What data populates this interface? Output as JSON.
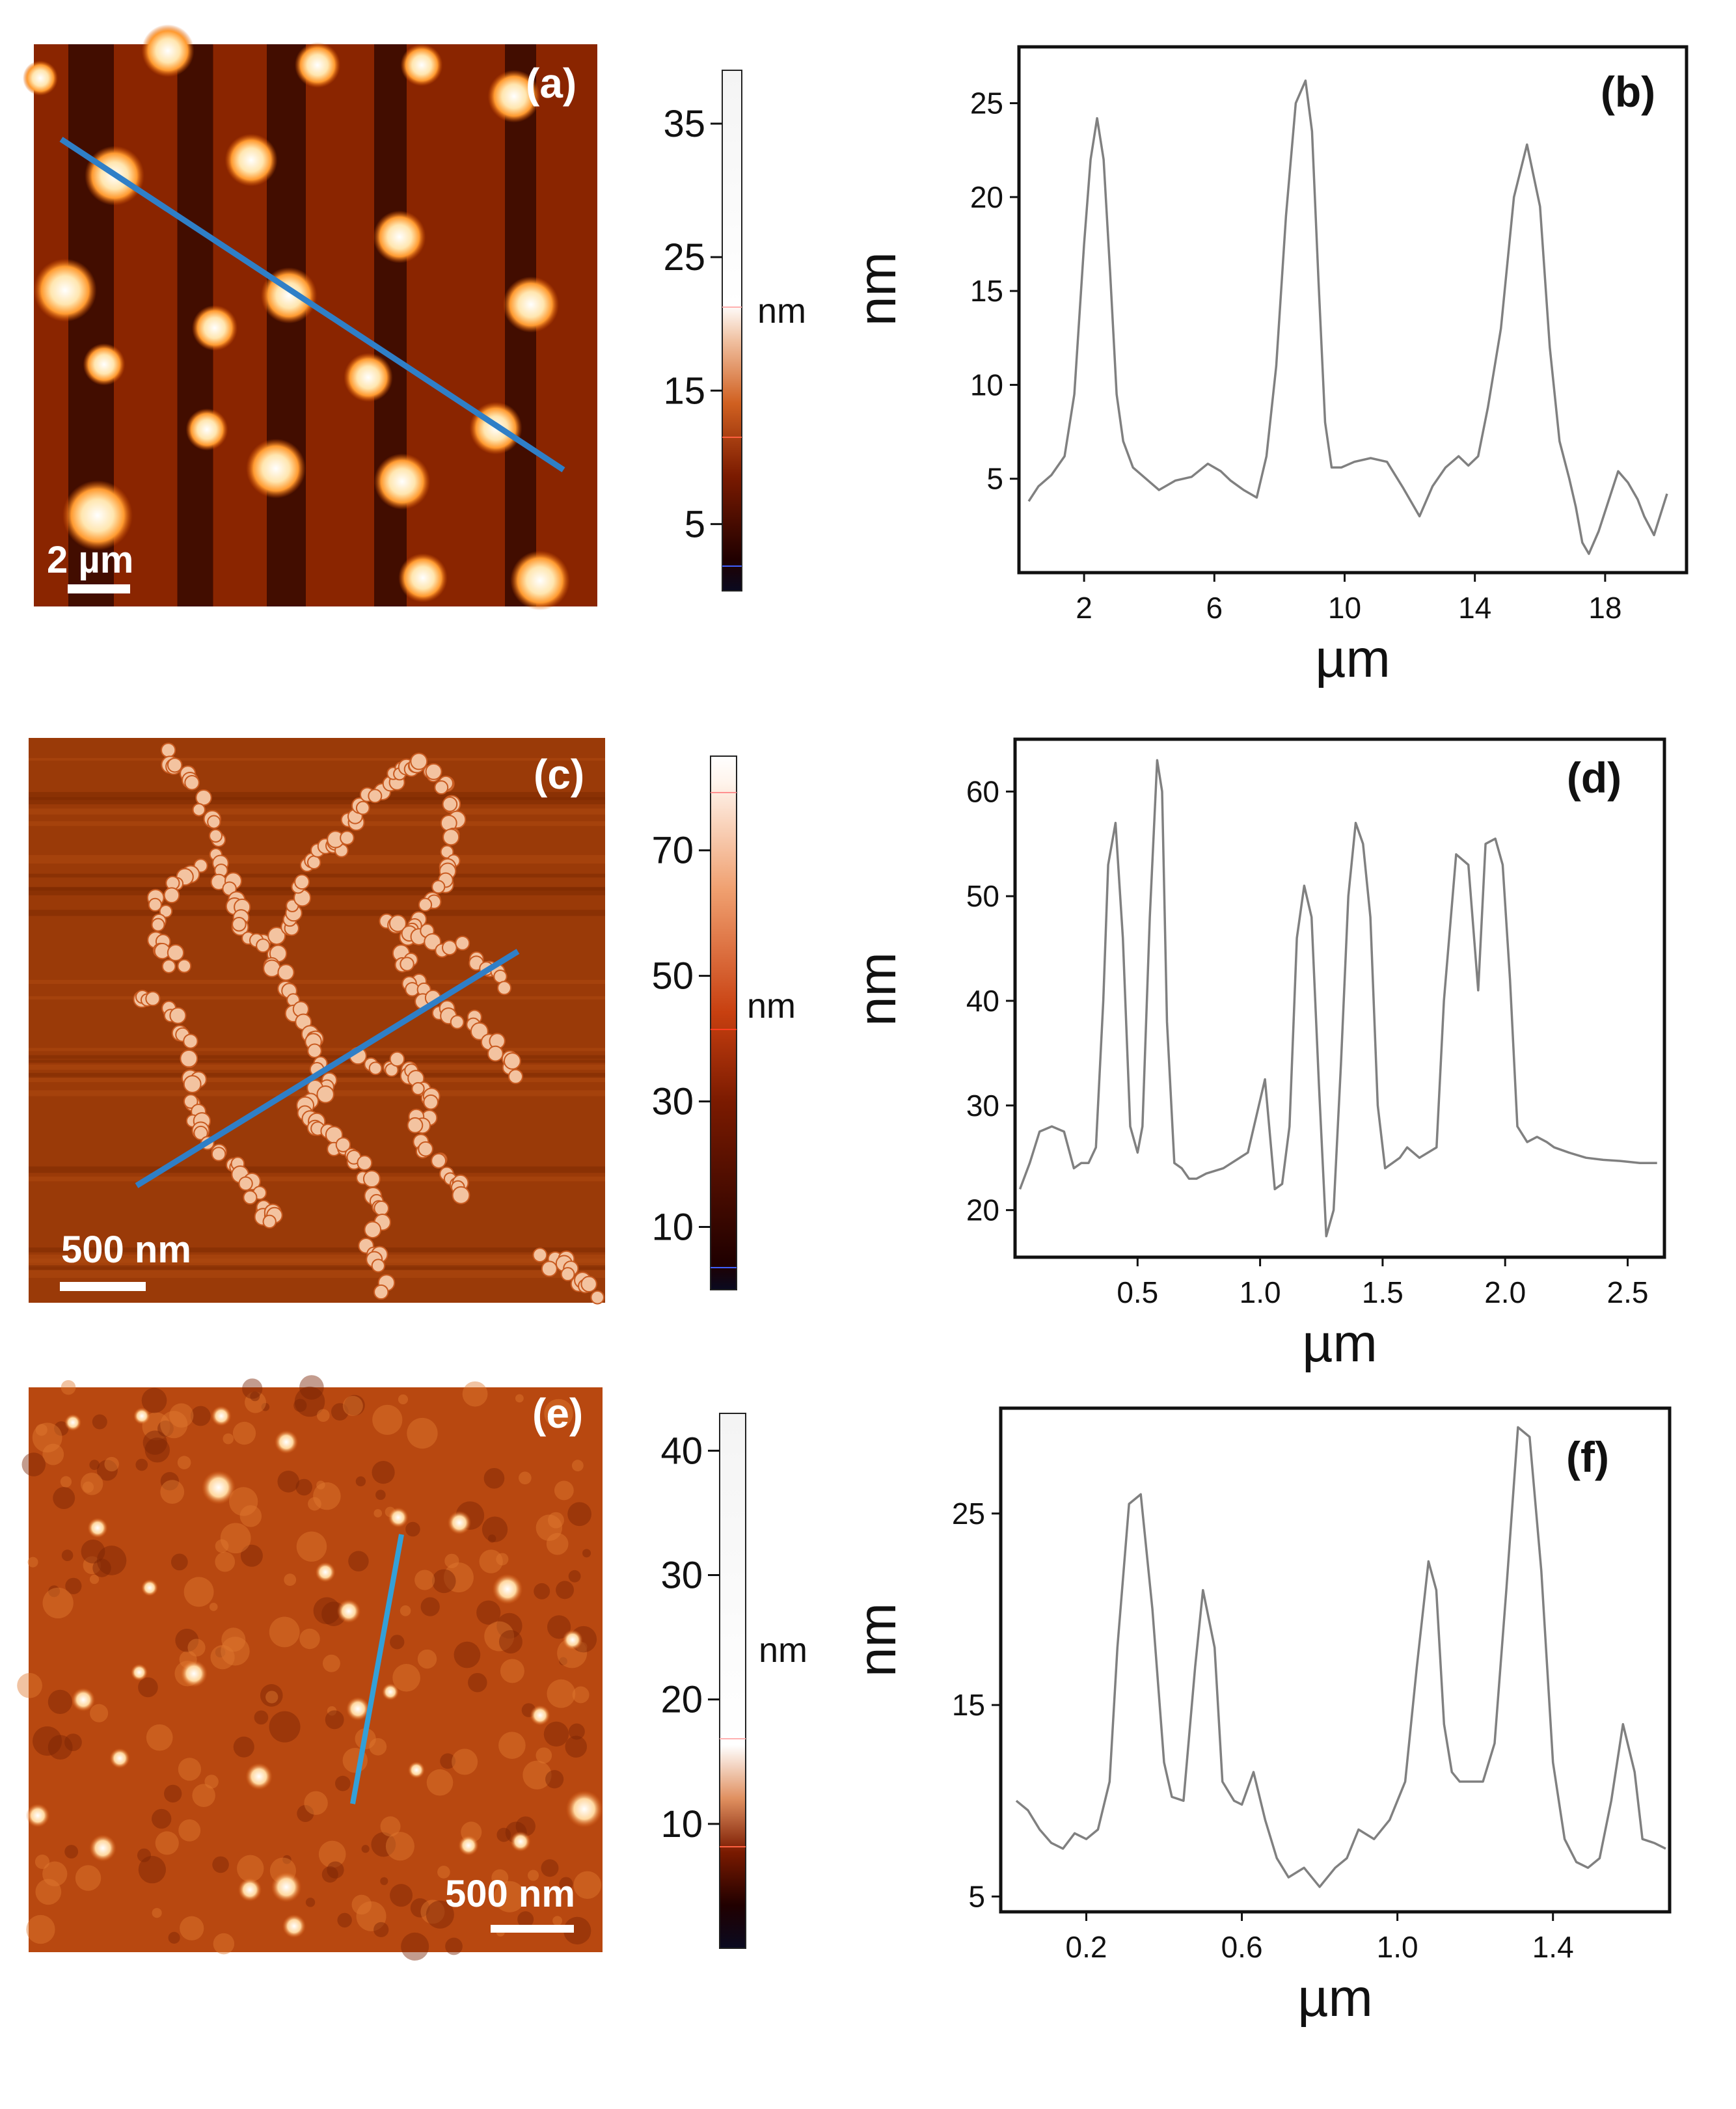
{
  "colors": {
    "afm_dark": "#1a0000",
    "afm_mid": "#a33000",
    "afm_bright": "#ffffff",
    "profile_line": "#2f7fc7",
    "profile_line_e": "#33a0d8",
    "trace": "#808080",
    "frame": "#111111"
  },
  "panels": [
    {
      "id": "a",
      "label": "(a)",
      "scale_bar_label": "2 µm",
      "kind": "dots",
      "colorbar": {
        "unit": "nm",
        "ticks": [
          "35",
          "25",
          "15",
          "5"
        ],
        "tick_values": [
          35,
          25,
          15,
          5
        ],
        "range": [
          0,
          39
        ]
      }
    },
    {
      "id": "c",
      "label": "(c)",
      "scale_bar_label": "500 nm",
      "kind": "network",
      "colorbar": {
        "unit": "nm",
        "ticks": [
          "70",
          "50",
          "30",
          "10"
        ],
        "tick_values": [
          70,
          50,
          30,
          10
        ],
        "range": [
          0,
          85
        ]
      }
    },
    {
      "id": "e",
      "label": "(e)",
      "scale_bar_label": "500 nm",
      "kind": "speckle",
      "colorbar": {
        "unit": "nm",
        "ticks": [
          "40",
          "30",
          "20",
          "10"
        ],
        "tick_values": [
          40,
          30,
          20,
          10
        ],
        "range": [
          0,
          43
        ]
      }
    }
  ],
  "chart_data": [
    {
      "id": "b",
      "type": "line",
      "panel_label": "(b)",
      "xlabel": "µm",
      "ylabel": "nm",
      "xlim": [
        0,
        20.5
      ],
      "ylim": [
        0,
        28
      ],
      "x_ticks": [
        2,
        6,
        10,
        14,
        18
      ],
      "x_tick_labels": [
        "2",
        "6",
        "10",
        "14",
        "18"
      ],
      "y_ticks": [
        5,
        10,
        15,
        20,
        25
      ],
      "y_tick_labels": [
        "5",
        "10",
        "15",
        "20",
        "25"
      ],
      "x": [
        0.3,
        0.6,
        1.0,
        1.4,
        1.7,
        2.0,
        2.2,
        2.4,
        2.6,
        2.8,
        3.0,
        3.2,
        3.5,
        3.9,
        4.3,
        4.8,
        5.3,
        5.8,
        6.2,
        6.5,
        6.9,
        7.3,
        7.6,
        7.9,
        8.2,
        8.5,
        8.8,
        9.0,
        9.2,
        9.4,
        9.6,
        9.9,
        10.3,
        10.8,
        11.3,
        11.8,
        12.3,
        12.7,
        13.1,
        13.5,
        13.8,
        14.1,
        14.4,
        14.8,
        15.2,
        15.6,
        16.0,
        16.3,
        16.6,
        16.9,
        17.1,
        17.3,
        17.5,
        17.8,
        18.1,
        18.4,
        18.7,
        19.0,
        19.2,
        19.5,
        19.9
      ],
      "values": [
        3.8,
        4.6,
        5.2,
        6.2,
        9.5,
        17.5,
        22.0,
        24.2,
        22.0,
        16.0,
        9.5,
        7.0,
        5.6,
        5.0,
        4.4,
        4.9,
        5.1,
        5.8,
        5.4,
        4.9,
        4.4,
        4.0,
        6.2,
        11.0,
        19.0,
        25.0,
        26.2,
        23.5,
        15.5,
        8.0,
        5.6,
        5.6,
        5.9,
        6.1,
        5.9,
        4.5,
        3.0,
        4.6,
        5.6,
        6.2,
        5.7,
        6.2,
        8.8,
        13.0,
        20.0,
        22.8,
        19.5,
        12.0,
        7.0,
        5.0,
        3.5,
        1.6,
        1.0,
        2.2,
        3.8,
        5.4,
        4.8,
        3.9,
        3.0,
        2.0,
        4.2
      ]
    },
    {
      "id": "d",
      "type": "line",
      "panel_label": "(d)",
      "xlabel": "µm",
      "ylabel": "nm",
      "xlim": [
        0,
        2.65
      ],
      "ylim": [
        15.5,
        65
      ],
      "x_ticks": [
        0.5,
        1.0,
        1.5,
        2.0,
        2.5
      ],
      "x_tick_labels": [
        "0.5",
        "1.0",
        "1.5",
        "2.0",
        "2.5"
      ],
      "y_ticks": [
        20,
        30,
        40,
        50,
        60
      ],
      "y_tick_labels": [
        "20",
        "30",
        "40",
        "50",
        "60"
      ],
      "x": [
        0.02,
        0.06,
        0.1,
        0.15,
        0.2,
        0.24,
        0.27,
        0.3,
        0.33,
        0.36,
        0.38,
        0.41,
        0.44,
        0.47,
        0.5,
        0.52,
        0.55,
        0.58,
        0.6,
        0.62,
        0.65,
        0.68,
        0.71,
        0.74,
        0.78,
        0.85,
        0.95,
        1.02,
        1.06,
        1.09,
        1.12,
        1.15,
        1.18,
        1.21,
        1.24,
        1.27,
        1.3,
        1.33,
        1.36,
        1.39,
        1.42,
        1.45,
        1.48,
        1.51,
        1.54,
        1.57,
        1.6,
        1.65,
        1.72,
        1.75,
        1.8,
        1.85,
        1.89,
        1.92,
        1.96,
        1.99,
        2.02,
        2.05,
        2.09,
        2.13,
        2.17,
        2.2,
        2.26,
        2.33,
        2.4,
        2.47,
        2.55,
        2.62
      ],
      "values": [
        22.0,
        24.5,
        27.5,
        28.0,
        27.5,
        24.0,
        24.5,
        24.5,
        26.0,
        40.0,
        53.0,
        57.0,
        46.0,
        28.0,
        25.5,
        28.0,
        48.0,
        63.0,
        60.0,
        38.0,
        24.5,
        24.0,
        23.0,
        23.0,
        23.5,
        24.0,
        25.5,
        32.5,
        22.0,
        22.5,
        28.0,
        46.0,
        51.0,
        48.0,
        32.0,
        17.5,
        20.0,
        34.0,
        50.0,
        57.0,
        55.0,
        48.0,
        30.0,
        24.0,
        24.5,
        25.0,
        26.0,
        25.0,
        26.0,
        40.0,
        54.0,
        53.0,
        41.0,
        55.0,
        55.5,
        53.0,
        42.0,
        28.0,
        26.5,
        27.0,
        26.5,
        26.0,
        25.5,
        25.0,
        24.8,
        24.7,
        24.5,
        24.5
      ]
    },
    {
      "id": "f",
      "type": "line",
      "panel_label": "(f)",
      "xlabel": "µm",
      "ylabel": "nm",
      "xlim": [
        -0.02,
        1.7
      ],
      "ylim": [
        4.2,
        30.5
      ],
      "x_ticks": [
        0.2,
        0.6,
        1.0,
        1.4
      ],
      "x_tick_labels": [
        "0.2",
        "0.6",
        "1.0",
        "1.4"
      ],
      "y_ticks": [
        5,
        15,
        25
      ],
      "y_tick_labels": [
        "5",
        "15",
        "25"
      ],
      "x": [
        0.02,
        0.05,
        0.08,
        0.11,
        0.14,
        0.17,
        0.2,
        0.23,
        0.26,
        0.28,
        0.31,
        0.34,
        0.37,
        0.4,
        0.42,
        0.45,
        0.48,
        0.5,
        0.53,
        0.55,
        0.58,
        0.6,
        0.63,
        0.66,
        0.69,
        0.72,
        0.76,
        0.8,
        0.84,
        0.87,
        0.9,
        0.94,
        0.98,
        1.02,
        1.05,
        1.08,
        1.1,
        1.12,
        1.14,
        1.16,
        1.19,
        1.22,
        1.25,
        1.28,
        1.31,
        1.34,
        1.37,
        1.4,
        1.43,
        1.46,
        1.49,
        1.52,
        1.55,
        1.58,
        1.61,
        1.63,
        1.66,
        1.69
      ],
      "values": [
        10.0,
        9.5,
        8.5,
        7.8,
        7.5,
        8.3,
        8.0,
        8.5,
        11.0,
        18.0,
        25.5,
        26.0,
        20.0,
        12.0,
        10.2,
        10.0,
        17.0,
        21.0,
        18.0,
        11.0,
        10.0,
        9.8,
        11.5,
        9.0,
        7.0,
        6.0,
        6.5,
        5.5,
        6.5,
        7.0,
        8.5,
        8.0,
        9.0,
        11.0,
        17.0,
        22.5,
        21.0,
        14.0,
        11.5,
        11.0,
        11.0,
        11.0,
        13.0,
        21.0,
        29.5,
        29.0,
        22.0,
        12.0,
        8.0,
        6.8,
        6.5,
        7.0,
        10.0,
        14.0,
        11.5,
        8.0,
        7.8,
        7.5
      ]
    }
  ]
}
